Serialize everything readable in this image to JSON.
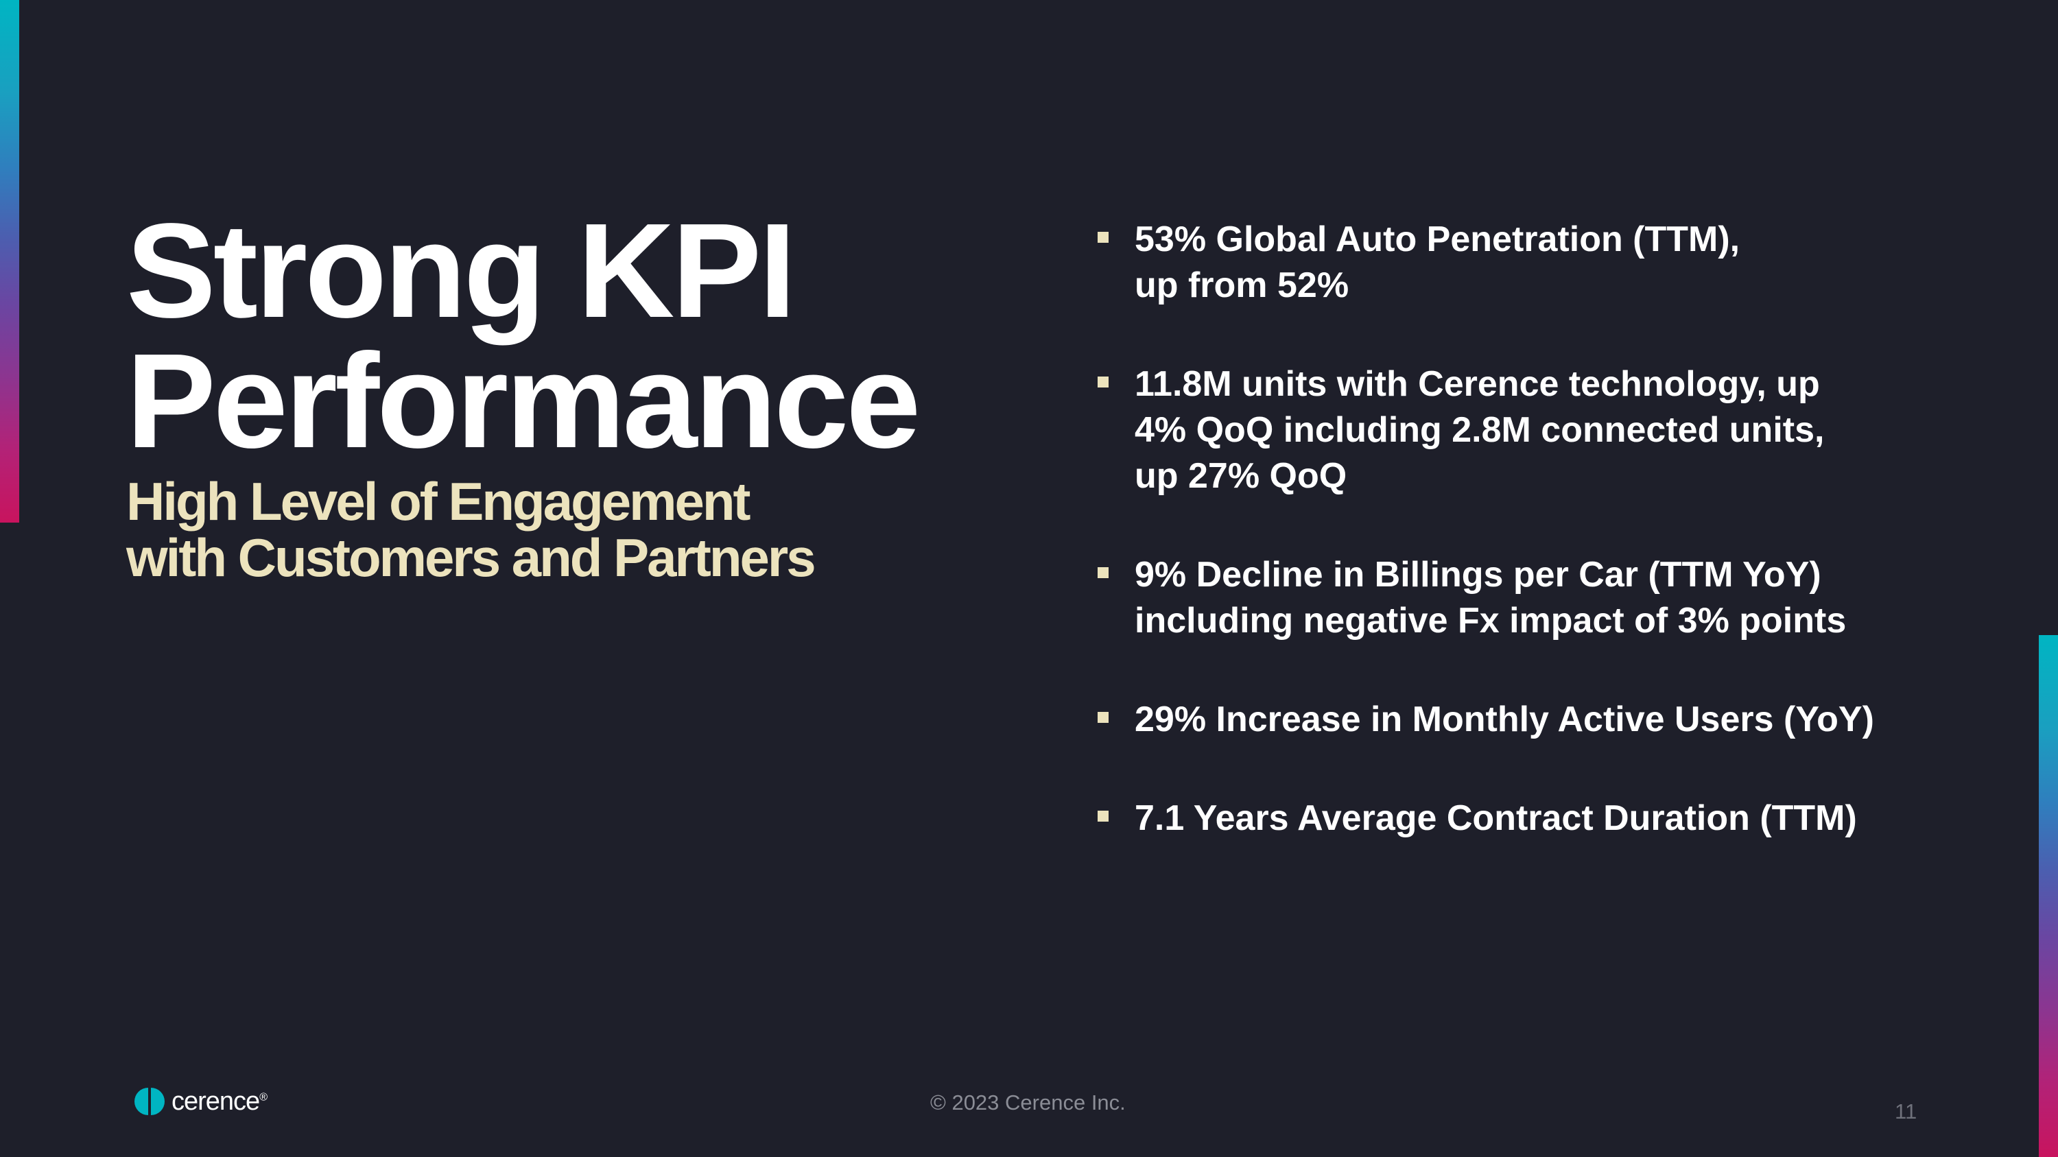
{
  "slide": {
    "title_lines": [
      "Strong KPI",
      "Performance"
    ],
    "subtitle_lines": [
      "High Level of Engagement",
      "with Customers and Partners"
    ],
    "bullets": [
      {
        "lines": [
          "53% Global Auto Penetration (TTM),",
          "up from 52%"
        ]
      },
      {
        "lines": [
          "11.8M units with Cerence technology, up",
          "4% QoQ including 2.8M connected units,",
          "up 27% QoQ"
        ]
      },
      {
        "lines": [
          "9% Decline in Billings per Car (TTM YoY)",
          "including negative Fx impact of 3% points"
        ]
      },
      {
        "lines": [
          "29% Increase in Monthly Active Users (YoY)"
        ]
      },
      {
        "lines": [
          "7.1 Years Average Contract Duration (TTM)"
        ]
      }
    ]
  },
  "footer": {
    "logo_text": "cerence",
    "logo_mark": "®",
    "copyright": "© 2023 Cerence Inc.",
    "page_number": "11"
  },
  "colors": {
    "background": "#1e1f2a",
    "title": "#ffffff",
    "subtitle": "#ece3bd",
    "accent_teal": "#00b5c2",
    "accent_magenta": "#c8145e"
  }
}
